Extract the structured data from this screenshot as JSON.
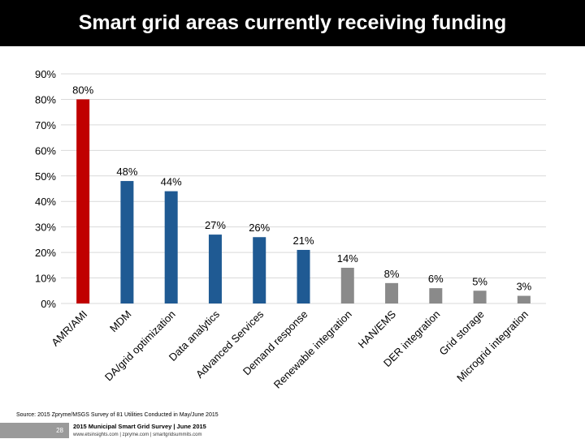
{
  "header": {
    "title": "Smart grid areas currently receiving funding"
  },
  "colors": {
    "red": "#c00000",
    "blue": "#1f5a93",
    "gray": "#8a8a8a"
  },
  "chart_data": {
    "type": "bar",
    "title": "",
    "xlabel": "",
    "ylabel": "",
    "ylim": [
      0,
      90
    ],
    "yticks": [
      "0%",
      "10%",
      "20%",
      "30%",
      "40%",
      "50%",
      "60%",
      "70%",
      "80%",
      "90%"
    ],
    "grid": true,
    "categories": [
      "AMR/AMI",
      "MDM",
      "DA/grid optimization",
      "Data analytics",
      "Advanced Services",
      "Demand response",
      "Renewable integration",
      "HAN/EMS",
      "DER integration",
      "Grid storage",
      "Microgrid integration"
    ],
    "values": [
      80,
      48,
      44,
      27,
      26,
      21,
      14,
      8,
      6,
      5,
      3
    ],
    "data_labels": [
      "80%",
      "48%",
      "44%",
      "27%",
      "26%",
      "21%",
      "14%",
      "8%",
      "6%",
      "5%",
      "3%"
    ],
    "bar_color_groups": [
      "red",
      "blue",
      "blue",
      "blue",
      "blue",
      "blue",
      "gray",
      "gray",
      "gray",
      "gray",
      "gray"
    ]
  },
  "footer": {
    "source": "Source: 2015 Zpryme/MSGS Survey of 81 Utilities Conducted in May/June 2015",
    "page_number": "28",
    "survey_title": "2015 Municipal Smart Grid Survey | June 2015",
    "links": "www.etsinsights.com | zpryme.com | smartgridsummits.com"
  }
}
